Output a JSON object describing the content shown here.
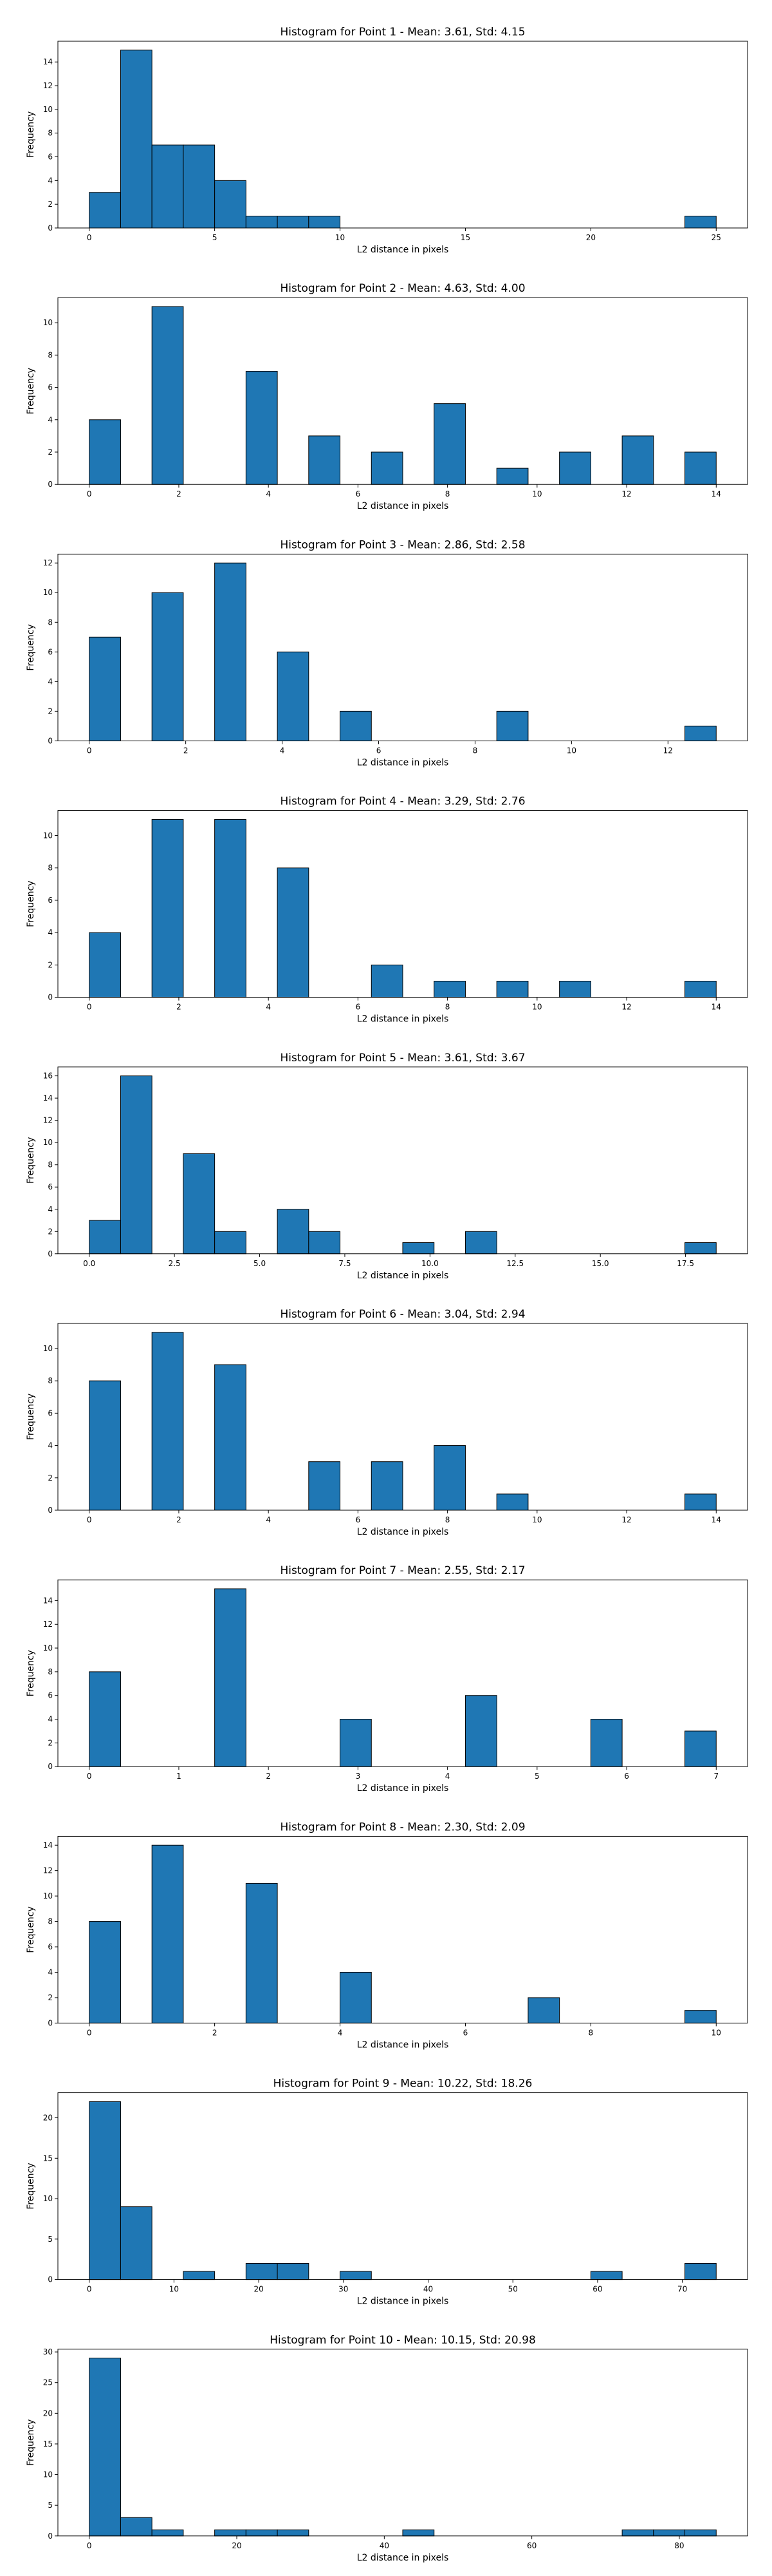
{
  "chart_data": [
    {
      "type": "bar",
      "title": "Histogram for Point 1 - Mean: 3.61, Std: 4.15",
      "xlabel": "L2 distance in pixels",
      "ylabel": "Frequency",
      "bins": {
        "start": 0,
        "width": 1.25
      },
      "counts": [
        3,
        15,
        7,
        7,
        4,
        1,
        1,
        1,
        0,
        0,
        0,
        0,
        0,
        0,
        0,
        0,
        0,
        0,
        0,
        1
      ],
      "xlim": [
        -1.25,
        26.25
      ],
      "ylim": [
        0,
        15.75
      ],
      "xticks": [
        0,
        5,
        10,
        15,
        20,
        25
      ],
      "yticks": [
        0,
        2,
        4,
        6,
        8,
        10,
        12,
        14
      ],
      "xtick_labels": [
        "0",
        "5",
        "10",
        "15",
        "20",
        "25"
      ],
      "ytick_labels": [
        "0",
        "2",
        "4",
        "6",
        "8",
        "10",
        "12",
        "14"
      ]
    },
    {
      "type": "bar",
      "title": "Histogram for Point 2 - Mean: 4.63, Std: 4.00",
      "xlabel": "L2 distance in pixels",
      "ylabel": "Frequency",
      "bins": {
        "start": 0,
        "width": 0.7
      },
      "counts": [
        4,
        0,
        11,
        0,
        0,
        7,
        0,
        3,
        0,
        2,
        0,
        5,
        0,
        1,
        0,
        2,
        0,
        3,
        0,
        2
      ],
      "xlim": [
        -0.7,
        14.7
      ],
      "ylim": [
        0,
        11.55
      ],
      "xticks": [
        0,
        2,
        4,
        6,
        8,
        10,
        12,
        14
      ],
      "yticks": [
        0,
        2,
        4,
        6,
        8,
        10
      ],
      "xtick_labels": [
        "0",
        "2",
        "4",
        "6",
        "8",
        "10",
        "12",
        "14"
      ],
      "ytick_labels": [
        "0",
        "2",
        "4",
        "6",
        "8",
        "10"
      ]
    },
    {
      "type": "bar",
      "title": "Histogram for Point 3 - Mean: 2.86, Std: 2.58",
      "xlabel": "L2 distance in pixels",
      "ylabel": "Frequency",
      "bins": {
        "start": 0,
        "width": 0.65
      },
      "counts": [
        7,
        0,
        10,
        0,
        12,
        0,
        6,
        0,
        2,
        0,
        0,
        0,
        0,
        2,
        0,
        0,
        0,
        0,
        0,
        1
      ],
      "xlim": [
        -0.65,
        13.65
      ],
      "ylim": [
        0,
        12.6
      ],
      "xticks": [
        0,
        2,
        4,
        6,
        8,
        10,
        12
      ],
      "yticks": [
        0,
        2,
        4,
        6,
        8,
        10,
        12
      ],
      "xtick_labels": [
        "0",
        "2",
        "4",
        "6",
        "8",
        "10",
        "12"
      ],
      "ytick_labels": [
        "0",
        "2",
        "4",
        "6",
        "8",
        "10",
        "12"
      ]
    },
    {
      "type": "bar",
      "title": "Histogram for Point 4 - Mean: 3.29, Std: 2.76",
      "xlabel": "L2 distance in pixels",
      "ylabel": "Frequency",
      "bins": {
        "start": 0,
        "width": 0.7
      },
      "counts": [
        4,
        0,
        11,
        0,
        11,
        0,
        8,
        0,
        0,
        2,
        0,
        1,
        0,
        1,
        0,
        1,
        0,
        0,
        0,
        1
      ],
      "xlim": [
        -0.7,
        14.7
      ],
      "ylim": [
        0,
        11.55
      ],
      "xticks": [
        0,
        2,
        4,
        6,
        8,
        10,
        12,
        14
      ],
      "yticks": [
        0,
        2,
        4,
        6,
        8,
        10
      ],
      "xtick_labels": [
        "0",
        "2",
        "4",
        "6",
        "8",
        "10",
        "12",
        "14"
      ],
      "ytick_labels": [
        "0",
        "2",
        "4",
        "6",
        "8",
        "10"
      ]
    },
    {
      "type": "bar",
      "title": "Histogram for Point 5 - Mean: 3.61, Std: 3.67",
      "xlabel": "L2 distance in pixels",
      "ylabel": "Frequency",
      "bins": {
        "start": 0,
        "width": 0.92
      },
      "counts": [
        3,
        16,
        0,
        9,
        2,
        0,
        4,
        2,
        0,
        0,
        1,
        0,
        2,
        0,
        0,
        0,
        0,
        0,
        0,
        1
      ],
      "xlim": [
        -0.92,
        19.32
      ],
      "ylim": [
        0,
        16.8
      ],
      "xticks": [
        0,
        2.5,
        5,
        7.5,
        10,
        12.5,
        15,
        17.5
      ],
      "yticks": [
        0,
        2,
        4,
        6,
        8,
        10,
        12,
        14,
        16
      ],
      "xtick_labels": [
        "0.0",
        "2.5",
        "5.0",
        "7.5",
        "10.0",
        "12.5",
        "15.0",
        "17.5"
      ],
      "ytick_labels": [
        "0",
        "2",
        "4",
        "6",
        "8",
        "10",
        "12",
        "14",
        "16"
      ]
    },
    {
      "type": "bar",
      "title": "Histogram for Point 6 - Mean: 3.04, Std: 2.94",
      "xlabel": "L2 distance in pixels",
      "ylabel": "Frequency",
      "bins": {
        "start": 0,
        "width": 0.7
      },
      "counts": [
        8,
        0,
        11,
        0,
        9,
        0,
        0,
        3,
        0,
        3,
        0,
        4,
        0,
        1,
        0,
        0,
        0,
        0,
        0,
        1
      ],
      "xlim": [
        -0.7,
        14.7
      ],
      "ylim": [
        0,
        11.55
      ],
      "xticks": [
        0,
        2,
        4,
        6,
        8,
        10,
        12,
        14
      ],
      "yticks": [
        0,
        2,
        4,
        6,
        8,
        10
      ],
      "xtick_labels": [
        "0",
        "2",
        "4",
        "6",
        "8",
        "10",
        "12",
        "14"
      ],
      "ytick_labels": [
        "0",
        "2",
        "4",
        "6",
        "8",
        "10"
      ]
    },
    {
      "type": "bar",
      "title": "Histogram for Point 7 - Mean: 2.55, Std: 2.17",
      "xlabel": "L2 distance in pixels",
      "ylabel": "Frequency",
      "bins": {
        "start": 0,
        "width": 0.35
      },
      "counts": [
        8,
        0,
        0,
        0,
        15,
        0,
        0,
        0,
        4,
        0,
        0,
        0,
        6,
        0,
        0,
        0,
        4,
        0,
        0,
        3
      ],
      "xlim": [
        -0.35,
        7.35
      ],
      "ylim": [
        0,
        15.75
      ],
      "xticks": [
        0,
        1,
        2,
        3,
        4,
        5,
        6,
        7
      ],
      "yticks": [
        0,
        2,
        4,
        6,
        8,
        10,
        12,
        14
      ],
      "xtick_labels": [
        "0",
        "1",
        "2",
        "3",
        "4",
        "5",
        "6",
        "7"
      ],
      "ytick_labels": [
        "0",
        "2",
        "4",
        "6",
        "8",
        "10",
        "12",
        "14"
      ]
    },
    {
      "type": "bar",
      "title": "Histogram for Point 8 - Mean: 2.30, Std: 2.09",
      "xlabel": "L2 distance in pixels",
      "ylabel": "Frequency",
      "bins": {
        "start": 0,
        "width": 0.5
      },
      "counts": [
        8,
        0,
        14,
        0,
        0,
        11,
        0,
        0,
        4,
        0,
        0,
        0,
        0,
        0,
        2,
        0,
        0,
        0,
        0,
        1
      ],
      "xlim": [
        -0.5,
        10.5
      ],
      "ylim": [
        0,
        14.7
      ],
      "xticks": [
        0,
        2,
        4,
        6,
        8,
        10
      ],
      "yticks": [
        0,
        2,
        4,
        6,
        8,
        10,
        12,
        14
      ],
      "xtick_labels": [
        "0",
        "2",
        "4",
        "6",
        "8",
        "10"
      ],
      "ytick_labels": [
        "0",
        "2",
        "4",
        "6",
        "8",
        "10",
        "12",
        "14"
      ]
    },
    {
      "type": "bar",
      "title": "Histogram for Point 9 - Mean: 10.22, Std: 18.26",
      "xlabel": "L2 distance in pixels",
      "ylabel": "Frequency",
      "bins": {
        "start": 0,
        "width": 3.7
      },
      "counts": [
        22,
        9,
        0,
        1,
        0,
        2,
        2,
        0,
        1,
        0,
        0,
        0,
        0,
        0,
        0,
        0,
        1,
        0,
        0,
        2
      ],
      "xlim": [
        -3.7,
        77.7
      ],
      "ylim": [
        0,
        23.1
      ],
      "xticks": [
        0,
        10,
        20,
        30,
        40,
        50,
        60,
        70
      ],
      "yticks": [
        0,
        5,
        10,
        15,
        20
      ],
      "xtick_labels": [
        "0",
        "10",
        "20",
        "30",
        "40",
        "50",
        "60",
        "70"
      ],
      "ytick_labels": [
        "0",
        "5",
        "10",
        "15",
        "20"
      ]
    },
    {
      "type": "bar",
      "title": "Histogram for Point 10 - Mean: 10.15, Std: 20.98",
      "xlabel": "L2 distance in pixels",
      "ylabel": "Frequency",
      "bins": {
        "start": 0,
        "width": 4.25
      },
      "counts": [
        29,
        3,
        1,
        0,
        1,
        1,
        1,
        0,
        0,
        0,
        1,
        0,
        0,
        0,
        0,
        0,
        0,
        1,
        1,
        1
      ],
      "xlim": [
        -4.25,
        89.25
      ],
      "ylim": [
        0,
        30.45
      ],
      "xticks": [
        0,
        20,
        40,
        60,
        80
      ],
      "yticks": [
        0,
        5,
        10,
        15,
        20,
        25,
        30
      ],
      "xtick_labels": [
        "0",
        "20",
        "40",
        "60",
        "80"
      ],
      "ytick_labels": [
        "0",
        "5",
        "10",
        "15",
        "20",
        "25",
        "30"
      ]
    }
  ]
}
